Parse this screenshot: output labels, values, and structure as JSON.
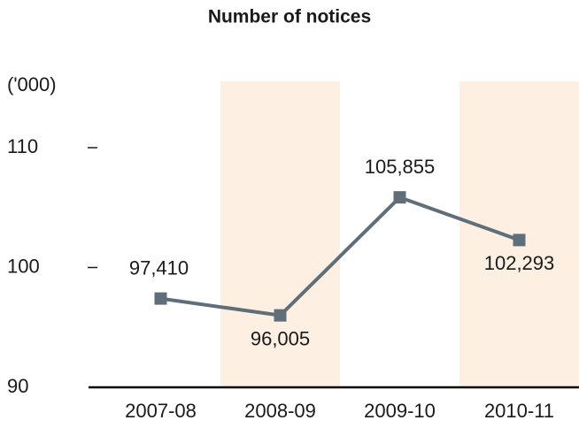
{
  "chart_data": {
    "type": "line",
    "title": "Number of notices",
    "y_unit_label": "('000)",
    "categories": [
      "2007-08",
      "2008-09",
      "2009-10",
      "2010-11"
    ],
    "series": [
      {
        "name": "Number of notices",
        "color": "#5f6e78",
        "values": [
          97.41,
          96.005,
          105.855,
          102.293
        ],
        "value_labels": [
          "97,410",
          "96,005",
          "105,855",
          "102,293"
        ]
      }
    ],
    "ylim": [
      90,
      110
    ],
    "yticks": [
      90,
      100,
      110
    ],
    "band_color": "#fdf0e3",
    "legend": false
  }
}
